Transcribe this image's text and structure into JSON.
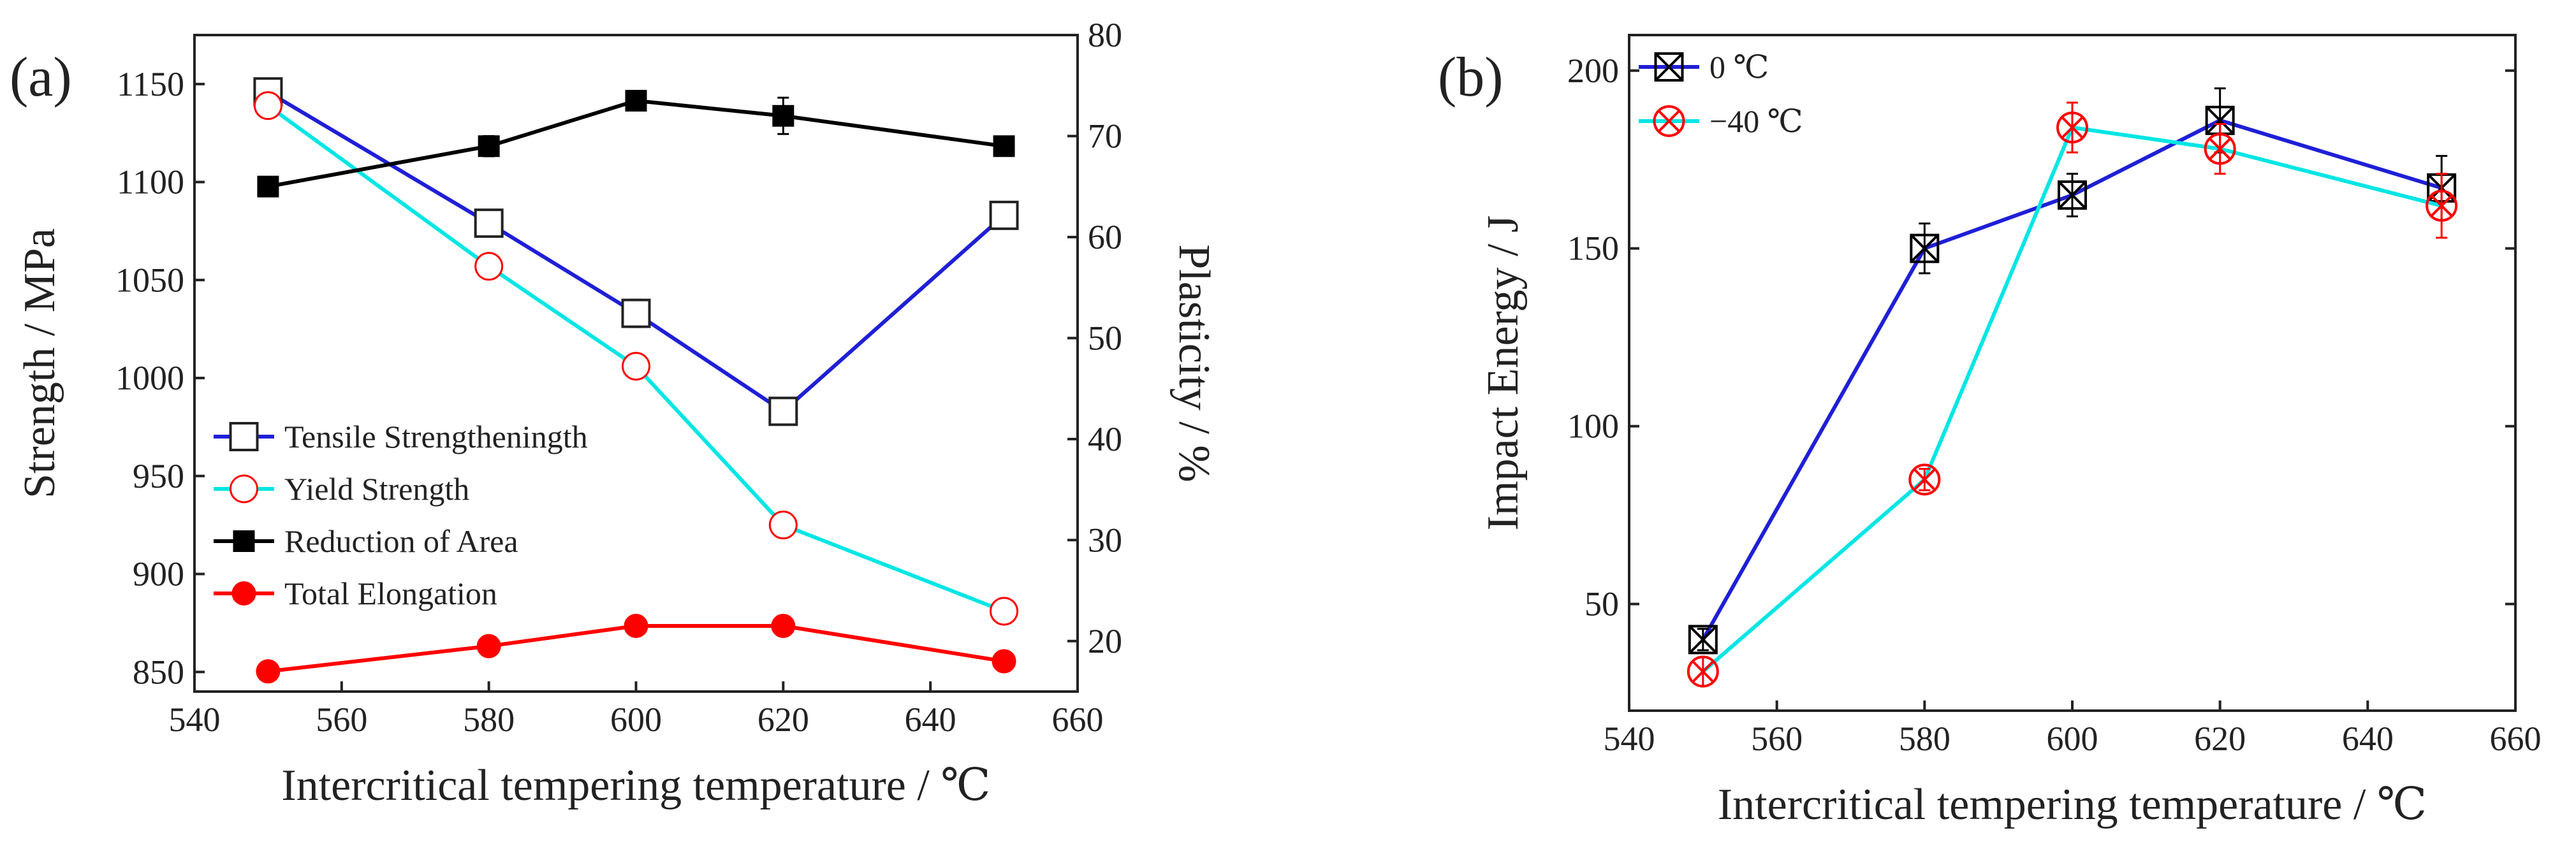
{
  "colors": {
    "tensile": "#1f1fd6",
    "yield": "#00e5e5",
    "reduction": "#000000",
    "elongation": "#ff0000",
    "impact_0": "#1f1fd6",
    "impact_m40": "#00e5e5",
    "marker_0": "#000000",
    "marker_m40": "#ff0000"
  },
  "chart_data": [
    {
      "panel_label": "(a)",
      "type": "line",
      "xlabel": "Intercritical tempering temperature / ℃",
      "ylabel": "Strength / MPa",
      "y2label": "Plasticity / %",
      "xlim": [
        540,
        660
      ],
      "ylim": [
        840,
        1175
      ],
      "y2lim": [
        15,
        80
      ],
      "xticks": [
        540,
        560,
        580,
        600,
        620,
        640,
        660
      ],
      "yticks": [
        850,
        900,
        950,
        1000,
        1050,
        1100,
        1150
      ],
      "y2ticks": [
        20,
        30,
        40,
        50,
        60,
        70,
        80
      ],
      "legend_position": "center-left",
      "series": [
        {
          "name": "Tensile Strengtheningth",
          "axis": "left",
          "marker": "open-square",
          "x": [
            550,
            580,
            600,
            620,
            650
          ],
          "values": [
            1146,
            1079,
            1033,
            983,
            1083
          ],
          "errors": [
            4,
            5,
            7,
            4,
            4
          ]
        },
        {
          "name": "Yield Strength",
          "axis": "left",
          "marker": "open-circle",
          "x": [
            550,
            580,
            600,
            620,
            650
          ],
          "values": [
            1139,
            1057,
            1006,
            925,
            881
          ],
          "errors": [
            4,
            6,
            5,
            3,
            5
          ]
        },
        {
          "name": "Reduction of Area",
          "axis": "right",
          "marker": "filled-square",
          "x": [
            550,
            580,
            600,
            620,
            650
          ],
          "values": [
            65,
            69,
            73.5,
            72,
            69
          ],
          "errors": [
            0.4,
            1.0,
            0.4,
            1.8,
            0.4
          ]
        },
        {
          "name": "Total Elongation",
          "axis": "right",
          "marker": "filled-circle",
          "x": [
            550,
            580,
            600,
            620,
            650
          ],
          "values": [
            17,
            19.5,
            21.5,
            21.5,
            18
          ],
          "errors": [
            0,
            0,
            0,
            0,
            0
          ]
        }
      ]
    },
    {
      "panel_label": "(b)",
      "type": "line",
      "xlabel": "Intercritical tempering temperature / ℃",
      "ylabel": "Impact Energy / J",
      "xlim": [
        540,
        660
      ],
      "ylim": [
        20,
        210
      ],
      "xticks": [
        540,
        560,
        580,
        600,
        620,
        640,
        660
      ],
      "yticks": [
        50,
        100,
        150,
        200
      ],
      "legend_position": "top-left",
      "series": [
        {
          "name": "0 ℃",
          "marker": "boxed-x",
          "x": [
            550,
            580,
            600,
            620,
            650
          ],
          "values": [
            40,
            150,
            165,
            186,
            167
          ],
          "errors": [
            3,
            7,
            6,
            9,
            9
          ]
        },
        {
          "name": "−40 ℃",
          "marker": "circled-x",
          "x": [
            550,
            580,
            600,
            620,
            650
          ],
          "values": [
            31,
            85,
            184,
            178,
            162
          ],
          "errors": [
            4,
            3,
            7,
            7,
            9
          ]
        }
      ]
    }
  ]
}
